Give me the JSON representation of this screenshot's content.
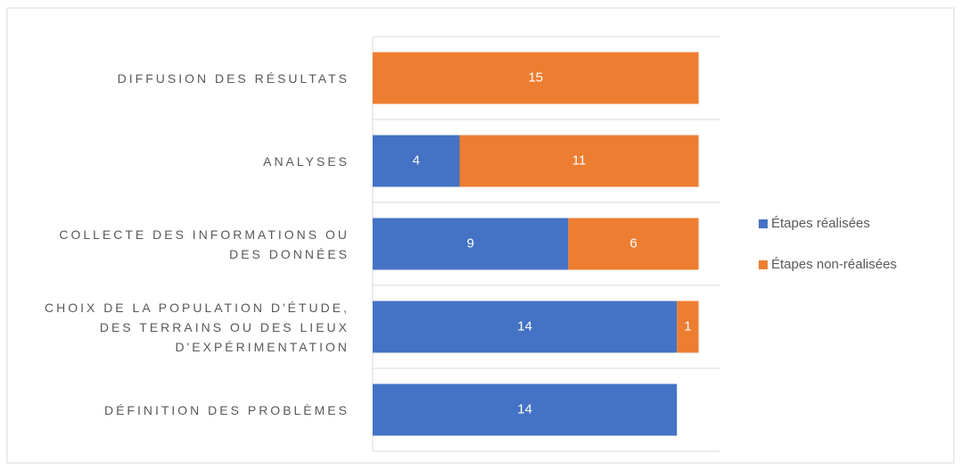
{
  "chart_data": {
    "type": "stacked-barh",
    "categories": [
      "DIFFUSION DES RÉSULTATS",
      "ANALYSES",
      "COLLECTE DES INFORMATIONS OU DES DONNÉES",
      "CHOIX DE LA POPULATION D'ÉTUDE, DES TERRAINS OU DES LIEUX D'EXPÉRIMENTATION",
      "DÉFINITION DES PROBLÈMES"
    ],
    "series": [
      {
        "name": "Étapes réalisées",
        "color": "#4472c4",
        "values": [
          null,
          4,
          9,
          14,
          14
        ]
      },
      {
        "name": "Étapes non-réalisées",
        "color": "#ed7d31",
        "values": [
          15,
          11,
          6,
          1,
          null
        ]
      }
    ],
    "xlim": [
      0,
      16
    ],
    "legend": "right"
  }
}
